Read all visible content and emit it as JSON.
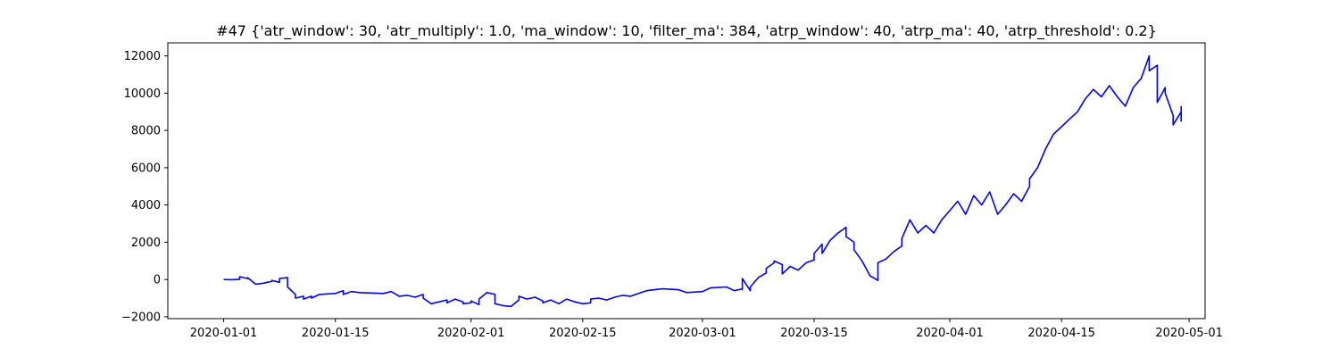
{
  "chart_data": {
    "type": "line",
    "title": "#47 {'atr_window': 30, 'atr_multiply': 1.0, 'ma_window': 10, 'filter_ma': 384, 'atrp_window': 40, 'atrp_ma': 40, 'atrp_threshold': 0.2}",
    "xlabel": "",
    "ylabel": "",
    "x_ticks": [
      "2020-01-01",
      "2020-01-15",
      "2020-02-01",
      "2020-02-15",
      "2020-03-01",
      "2020-03-15",
      "2020-04-01",
      "2020-04-15",
      "2020-05-01"
    ],
    "y_ticks": [
      -2000,
      0,
      2000,
      4000,
      6000,
      8000,
      10000,
      12000
    ],
    "xlim": [
      "2019-12-25",
      "2020-05-03"
    ],
    "ylim": [
      -2100,
      12700
    ],
    "grid": false,
    "series": [
      {
        "color": "#0000ff",
        "points": [
          [
            "2020-01-01",
            0
          ],
          [
            "2020-01-02",
            -10
          ],
          [
            "2020-01-03",
            10
          ],
          [
            "2020-01-03",
            150
          ],
          [
            "2020-01-04",
            50
          ],
          [
            "2020-01-04",
            100
          ],
          [
            "2020-01-05",
            -250
          ],
          [
            "2020-01-06",
            -200
          ],
          [
            "2020-01-07",
            -100
          ],
          [
            "2020-01-07",
            -50
          ],
          [
            "2020-01-08",
            -150
          ],
          [
            "2020-01-08",
            50
          ],
          [
            "2020-01-09",
            100
          ],
          [
            "2020-01-09",
            -400
          ],
          [
            "2020-01-10",
            -800
          ],
          [
            "2020-01-10",
            -1000
          ],
          [
            "2020-01-11",
            -900
          ],
          [
            "2020-01-11",
            -1050
          ],
          [
            "2020-01-12",
            -900
          ],
          [
            "2020-01-12",
            -1000
          ],
          [
            "2020-01-13",
            -800
          ],
          [
            "2020-01-15",
            -750
          ],
          [
            "2020-01-16",
            -600
          ],
          [
            "2020-01-16",
            -800
          ],
          [
            "2020-01-17",
            -650
          ],
          [
            "2020-01-18",
            -700
          ],
          [
            "2020-01-21",
            -750
          ],
          [
            "2020-01-22",
            -650
          ],
          [
            "2020-01-23",
            -900
          ],
          [
            "2020-01-24",
            -850
          ],
          [
            "2020-01-25",
            -950
          ],
          [
            "2020-01-26",
            -800
          ],
          [
            "2020-01-26",
            -1000
          ],
          [
            "2020-01-27",
            -1300
          ],
          [
            "2020-01-28",
            -1200
          ],
          [
            "2020-01-29",
            -1100
          ],
          [
            "2020-01-29",
            -1250
          ],
          [
            "2020-01-30",
            -1050
          ],
          [
            "2020-01-31",
            -1200
          ],
          [
            "2020-01-31",
            -1300
          ],
          [
            "2020-02-01",
            -1250
          ],
          [
            "2020-02-01",
            -1150
          ],
          [
            "2020-02-02",
            -1350
          ],
          [
            "2020-02-02",
            -1050
          ],
          [
            "2020-02-03",
            -700
          ],
          [
            "2020-02-04",
            -800
          ],
          [
            "2020-02-04",
            -1300
          ],
          [
            "2020-02-05",
            -1400
          ],
          [
            "2020-02-06",
            -1450
          ],
          [
            "2020-02-07",
            -1100
          ],
          [
            "2020-02-07",
            -900
          ],
          [
            "2020-02-08",
            -1050
          ],
          [
            "2020-02-09",
            -950
          ],
          [
            "2020-02-10",
            -1150
          ],
          [
            "2020-02-10",
            -1250
          ],
          [
            "2020-02-11",
            -1100
          ],
          [
            "2020-02-12",
            -1300
          ],
          [
            "2020-02-13",
            -1050
          ],
          [
            "2020-02-14",
            -1200
          ],
          [
            "2020-02-15",
            -1300
          ],
          [
            "2020-02-16",
            -1250
          ],
          [
            "2020-02-16",
            -1050
          ],
          [
            "2020-02-17",
            -1000
          ],
          [
            "2020-02-18",
            -1100
          ],
          [
            "2020-02-19",
            -950
          ],
          [
            "2020-02-20",
            -850
          ],
          [
            "2020-02-21",
            -900
          ],
          [
            "2020-02-22",
            -750
          ],
          [
            "2020-02-23",
            -600
          ],
          [
            "2020-02-24",
            -550
          ],
          [
            "2020-02-25",
            -500
          ],
          [
            "2020-02-27",
            -550
          ],
          [
            "2020-02-28",
            -700
          ],
          [
            "2020-03-01",
            -650
          ],
          [
            "2020-03-02",
            -450
          ],
          [
            "2020-03-04",
            -400
          ],
          [
            "2020-03-05",
            -600
          ],
          [
            "2020-03-06",
            -500
          ],
          [
            "2020-03-06",
            -550
          ],
          [
            "2020-03-06",
            50
          ],
          [
            "2020-03-07",
            -600
          ],
          [
            "2020-03-07",
            -400
          ],
          [
            "2020-03-08",
            100
          ],
          [
            "2020-03-09",
            350
          ],
          [
            "2020-03-09",
            600
          ],
          [
            "2020-03-10",
            900
          ],
          [
            "2020-03-10",
            1000
          ],
          [
            "2020-03-11",
            800
          ],
          [
            "2020-03-11",
            300
          ],
          [
            "2020-03-12",
            700
          ],
          [
            "2020-03-13",
            500
          ],
          [
            "2020-03-14",
            900
          ],
          [
            "2020-03-15",
            1050
          ],
          [
            "2020-03-15",
            1400
          ],
          [
            "2020-03-16",
            1900
          ],
          [
            "2020-03-16",
            1400
          ],
          [
            "2020-03-17",
            2100
          ],
          [
            "2020-03-18",
            2500
          ],
          [
            "2020-03-19",
            2800
          ],
          [
            "2020-03-19",
            2300
          ],
          [
            "2020-03-20",
            2000
          ],
          [
            "2020-03-20",
            1600
          ],
          [
            "2020-03-21",
            1000
          ],
          [
            "2020-03-22",
            200
          ],
          [
            "2020-03-23",
            -50
          ],
          [
            "2020-03-23",
            900
          ],
          [
            "2020-03-24",
            1100
          ],
          [
            "2020-03-25",
            1500
          ],
          [
            "2020-03-26",
            1800
          ],
          [
            "2020-03-26",
            2200
          ],
          [
            "2020-03-27",
            3200
          ],
          [
            "2020-03-28",
            2500
          ],
          [
            "2020-03-29",
            2900
          ],
          [
            "2020-03-30",
            2500
          ],
          [
            "2020-03-31",
            3200
          ],
          [
            "2020-04-01",
            3700
          ],
          [
            "2020-04-02",
            4200
          ],
          [
            "2020-04-03",
            3500
          ],
          [
            "2020-04-04",
            4500
          ],
          [
            "2020-04-05",
            4000
          ],
          [
            "2020-04-06",
            4700
          ],
          [
            "2020-04-07",
            3500
          ],
          [
            "2020-04-08",
            4000
          ],
          [
            "2020-04-09",
            4600
          ],
          [
            "2020-04-10",
            4200
          ],
          [
            "2020-04-11",
            5000
          ],
          [
            "2020-04-11",
            5400
          ],
          [
            "2020-04-12",
            6000
          ],
          [
            "2020-04-13",
            7000
          ],
          [
            "2020-04-14",
            7800
          ],
          [
            "2020-04-15",
            8200
          ],
          [
            "2020-04-16",
            8600
          ],
          [
            "2020-04-17",
            9000
          ],
          [
            "2020-04-18",
            9700
          ],
          [
            "2020-04-19",
            10200
          ],
          [
            "2020-04-20",
            9800
          ],
          [
            "2020-04-21",
            10400
          ],
          [
            "2020-04-22",
            9800
          ],
          [
            "2020-04-23",
            9300
          ],
          [
            "2020-04-24",
            10300
          ],
          [
            "2020-04-25",
            10800
          ],
          [
            "2020-04-26",
            12000
          ],
          [
            "2020-04-26",
            11200
          ],
          [
            "2020-04-27",
            11500
          ],
          [
            "2020-04-27",
            10700
          ],
          [
            "2020-04-27",
            9500
          ],
          [
            "2020-04-28",
            10300
          ],
          [
            "2020-04-28",
            10000
          ],
          [
            "2020-04-29",
            8800
          ],
          [
            "2020-04-29",
            8300
          ],
          [
            "2020-04-30",
            9000
          ],
          [
            "2020-04-30",
            8500
          ],
          [
            "2020-04-30",
            9300
          ]
        ]
      }
    ]
  }
}
